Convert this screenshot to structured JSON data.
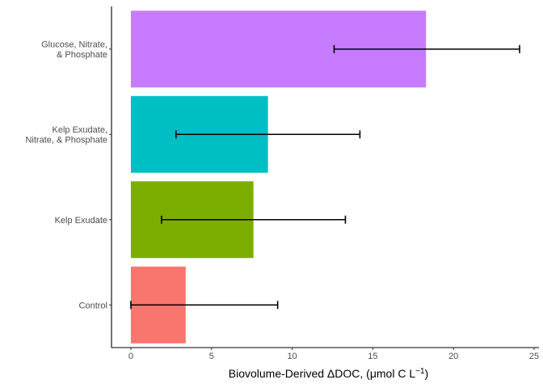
{
  "chart_data": {
    "type": "bar",
    "orientation": "horizontal",
    "categories": [
      [
        "Control"
      ],
      [
        "Kelp Exudate"
      ],
      [
        "Kelp Exudate,",
        "Nitrate, & Phosphate"
      ],
      [
        "Glucose, Nitrate,",
        "& Phosphate"
      ]
    ],
    "values": [
      3.4,
      7.6,
      8.5,
      18.3
    ],
    "error_low": [
      0.0,
      1.9,
      2.8,
      12.6
    ],
    "error_high": [
      9.1,
      13.3,
      14.2,
      24.1
    ],
    "colors": [
      "#F8766D",
      "#7CAE00",
      "#00BFC4",
      "#C77CFF"
    ],
    "xlabel": {
      "main": "Biovolume-Derived ΔDOC, (μmol C L",
      "sup": "−1",
      "close": ")"
    },
    "ylabel": "",
    "xlim": [
      -1.2,
      25.3
    ],
    "xticks": [
      0,
      5,
      10,
      15,
      20,
      25
    ],
    "grid": false,
    "legend": "none"
  }
}
